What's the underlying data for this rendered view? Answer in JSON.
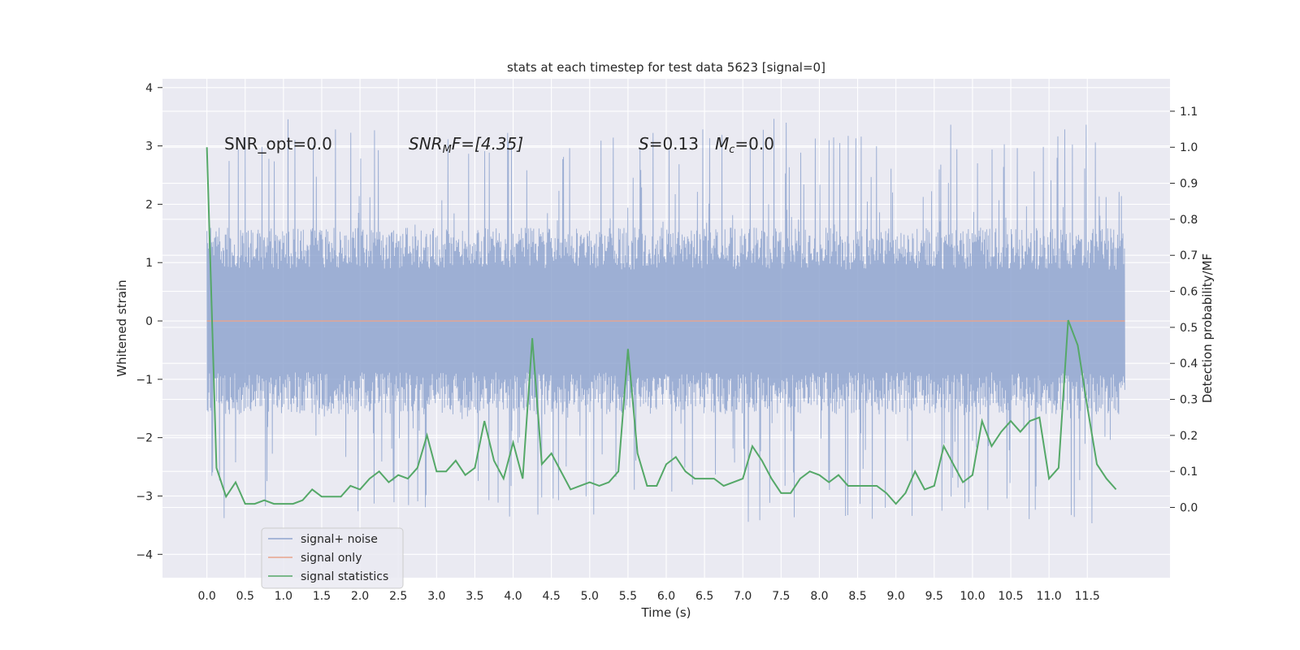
{
  "chart_data": {
    "type": "line",
    "title": "stats at each timestep for test data 5623 [signal=0]",
    "xlabel": "Time (s)",
    "ylabel": "Whitened strain",
    "y2label": "Detection probability/MF",
    "xlim": [
      -0.58,
      12.58
    ],
    "ylim": [
      -4.4,
      4.15
    ],
    "y2lim": [
      -0.195,
      1.19
    ],
    "x_ticks": [
      "0.0",
      "0.5",
      "1.0",
      "1.5",
      "2.0",
      "2.5",
      "3.0",
      "3.5",
      "4.0",
      "4.5",
      "5.0",
      "5.5",
      "6.0",
      "6.5",
      "7.0",
      "7.5",
      "8.0",
      "8.5",
      "9.0",
      "9.5",
      "10.0",
      "10.5",
      "11.0",
      "11.5"
    ],
    "y_ticks": [
      "4",
      "3",
      "2",
      "1",
      "0",
      "−1",
      "−2",
      "−3",
      "−4"
    ],
    "y2_ticks": [
      "1.1",
      "1.0",
      "0.9",
      "0.8",
      "0.7",
      "0.6",
      "0.5",
      "0.4",
      "0.3",
      "0.2",
      "0.1",
      "0.0"
    ],
    "grid": true,
    "legend_position": "lower-left",
    "annotations": {
      "snr_opt": "SNR_opt=0.0",
      "snr_mf_base": "SNR",
      "snr_mf_sub": "M",
      "snr_mf_rest": "F=[4.35]",
      "s_var": "S",
      "s_rest": "=0.13",
      "mc_base": "M",
      "mc_sub": "c",
      "mc_rest": "=0.0"
    },
    "series": [
      {
        "name": "signal+ noise",
        "color": "#8fa5cf",
        "axis": "left",
        "x_range": [
          0.0,
          11.99
        ],
        "envelope_min": -3.5,
        "envelope_max": 3.8,
        "typical_abs": 1.6
      },
      {
        "name": "signal only",
        "color": "#e8a58d",
        "axis": "left",
        "x": [
          0.0,
          11.99
        ],
        "y": [
          0,
          0
        ]
      },
      {
        "name": "signal statistics",
        "color": "#55a868",
        "axis": "right",
        "x": [
          0.0,
          0.125,
          0.25,
          0.375,
          0.5,
          0.625,
          0.75,
          0.875,
          1.0,
          1.125,
          1.25,
          1.375,
          1.5,
          1.625,
          1.75,
          1.875,
          2.0,
          2.125,
          2.25,
          2.375,
          2.5,
          2.625,
          2.75,
          2.875,
          3.0,
          3.125,
          3.25,
          3.375,
          3.5,
          3.625,
          3.75,
          3.875,
          4.0,
          4.125,
          4.25,
          4.375,
          4.5,
          4.625,
          4.75,
          4.875,
          5.0,
          5.125,
          5.25,
          5.375,
          5.5,
          5.625,
          5.75,
          5.875,
          6.0,
          6.125,
          6.25,
          6.375,
          6.5,
          6.625,
          6.75,
          6.875,
          7.0,
          7.125,
          7.25,
          7.375,
          7.5,
          7.625,
          7.75,
          7.875,
          8.0,
          8.125,
          8.25,
          8.375,
          8.5,
          8.625,
          8.75,
          8.875,
          9.0,
          9.125,
          9.25,
          9.375,
          9.5,
          9.625,
          9.75,
          9.875,
          10.0,
          10.125,
          10.25,
          10.375,
          10.5,
          10.625,
          10.75,
          10.875,
          11.0,
          11.125,
          11.25,
          11.375,
          11.5,
          11.625,
          11.75,
          11.875
        ],
        "y": [
          1.0,
          0.11,
          0.03,
          0.07,
          0.01,
          0.01,
          0.02,
          0.01,
          0.01,
          0.01,
          0.02,
          0.05,
          0.03,
          0.03,
          0.03,
          0.06,
          0.05,
          0.08,
          0.1,
          0.07,
          0.09,
          0.08,
          0.11,
          0.2,
          0.1,
          0.1,
          0.13,
          0.09,
          0.11,
          0.24,
          0.13,
          0.08,
          0.18,
          0.08,
          0.47,
          0.12,
          0.15,
          0.1,
          0.05,
          0.06,
          0.07,
          0.06,
          0.07,
          0.1,
          0.44,
          0.15,
          0.06,
          0.06,
          0.12,
          0.14,
          0.1,
          0.08,
          0.08,
          0.08,
          0.06,
          0.07,
          0.08,
          0.17,
          0.13,
          0.08,
          0.04,
          0.04,
          0.08,
          0.1,
          0.09,
          0.07,
          0.09,
          0.06,
          0.06,
          0.06,
          0.06,
          0.04,
          0.01,
          0.04,
          0.1,
          0.05,
          0.06,
          0.17,
          0.12,
          0.07,
          0.09,
          0.24,
          0.17,
          0.21,
          0.24,
          0.21,
          0.24,
          0.25,
          0.08,
          0.11,
          0.52,
          0.45,
          0.28,
          0.12,
          0.08,
          0.05
        ]
      }
    ]
  }
}
